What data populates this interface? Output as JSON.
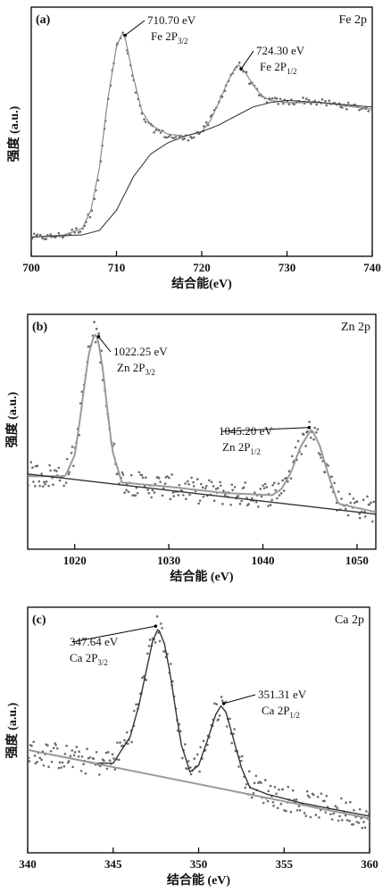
{
  "chart_data": [
    {
      "type": "scatter",
      "panel_label": "(a)",
      "element_label": "Fe 2p",
      "xlabel": "结合能(eV)",
      "ylabel": "强度 (a.u.)",
      "xlim": [
        700,
        740
      ],
      "xticks": [
        700,
        710,
        720,
        730,
        740
      ],
      "tick_labels": [
        "700",
        "710",
        "720",
        "730",
        "740"
      ],
      "ylim": [
        0,
        1
      ],
      "annotations": [
        {
          "value": "710.70 eV",
          "main": "Fe 2P",
          "sub": "3/2",
          "x": 710.7,
          "y": 0.93
        },
        {
          "value": "724.30 eV",
          "main": "Fe 2P",
          "sub": "1/2",
          "x": 724.3,
          "y": 0.78
        }
      ],
      "series": [
        {
          "role": "measured points",
          "style": "dots",
          "x": [
            700,
            702,
            704,
            706,
            707,
            708,
            709,
            710,
            710.7,
            711,
            712,
            713,
            714,
            716,
            718,
            720,
            721,
            722,
            723,
            724,
            724.3,
            725,
            726,
            727,
            728,
            730,
            732,
            734,
            736,
            738,
            740
          ],
          "y": [
            0.03,
            0.03,
            0.04,
            0.07,
            0.14,
            0.32,
            0.64,
            0.88,
            0.94,
            0.91,
            0.72,
            0.57,
            0.52,
            0.48,
            0.47,
            0.5,
            0.55,
            0.63,
            0.72,
            0.79,
            0.8,
            0.77,
            0.7,
            0.65,
            0.64,
            0.63,
            0.64,
            0.63,
            0.62,
            0.61,
            0.6
          ]
        },
        {
          "role": "fit envelope",
          "style": "thin gray line",
          "x": [
            700,
            704,
            706,
            707,
            708,
            709,
            710,
            710.7,
            711,
            712,
            713,
            714,
            716,
            718,
            720,
            721,
            722,
            723,
            724,
            724.3,
            725,
            726,
            727,
            728,
            730,
            732,
            734,
            736,
            738,
            740
          ],
          "y": [
            0.03,
            0.04,
            0.07,
            0.15,
            0.34,
            0.65,
            0.88,
            0.94,
            0.92,
            0.74,
            0.59,
            0.53,
            0.49,
            0.48,
            0.5,
            0.55,
            0.63,
            0.72,
            0.79,
            0.8,
            0.77,
            0.71,
            0.66,
            0.64,
            0.63,
            0.63,
            0.63,
            0.62,
            0.61,
            0.6
          ]
        },
        {
          "role": "background",
          "style": "thin dark line",
          "x": [
            700,
            706,
            708,
            710,
            712,
            714,
            716,
            718,
            720,
            722,
            724,
            726,
            728,
            730,
            734,
            740
          ],
          "y": [
            0.03,
            0.04,
            0.06,
            0.15,
            0.3,
            0.4,
            0.45,
            0.48,
            0.5,
            0.53,
            0.57,
            0.61,
            0.63,
            0.64,
            0.63,
            0.61
          ]
        }
      ]
    },
    {
      "type": "scatter",
      "panel_label": "(b)",
      "element_label": "Zn 2p",
      "xlabel": "结合能 (eV)",
      "ylabel": "强度 (a.u.)",
      "xlim": [
        1015,
        1052
      ],
      "xticks": [
        1020,
        1030,
        1040,
        1050
      ],
      "tick_labels": [
        "1020",
        "1030",
        "1040",
        "1050"
      ],
      "ylim": [
        0,
        1
      ],
      "annotations": [
        {
          "value": "1022.25 eV",
          "main": "Zn 2P",
          "sub": "3/2",
          "x": 1022.25,
          "y": 0.95
        },
        {
          "value": "1045.20 eV",
          "main": "Zn 2P",
          "sub": "1/2",
          "x": 1045.2,
          "y": 0.52
        }
      ],
      "series": [
        {
          "role": "measured points",
          "style": "dots",
          "x": [
            1015,
            1017,
            1019,
            1020,
            1020.5,
            1021,
            1021.5,
            1022,
            1022.25,
            1022.5,
            1023,
            1023.5,
            1024,
            1025,
            1027,
            1030,
            1033,
            1036,
            1039,
            1041,
            1042,
            1043,
            1044,
            1045,
            1045.2,
            1046,
            1047,
            1048,
            1050,
            1052
          ],
          "y": [
            0.3,
            0.29,
            0.3,
            0.4,
            0.55,
            0.72,
            0.88,
            0.96,
            0.97,
            0.94,
            0.8,
            0.6,
            0.42,
            0.27,
            0.25,
            0.24,
            0.22,
            0.21,
            0.2,
            0.21,
            0.24,
            0.32,
            0.44,
            0.51,
            0.52,
            0.45,
            0.3,
            0.17,
            0.15,
            0.13
          ]
        },
        {
          "role": "fit envelope",
          "style": "gray line",
          "x": [
            1015,
            1019,
            1020,
            1020.5,
            1021,
            1021.5,
            1022,
            1022.25,
            1022.5,
            1023,
            1023.5,
            1024,
            1025,
            1030,
            1036,
            1041,
            1042,
            1043,
            1044,
            1045,
            1045.2,
            1046,
            1047,
            1048,
            1050,
            1052
          ],
          "y": [
            0.29,
            0.29,
            0.39,
            0.54,
            0.71,
            0.87,
            0.95,
            0.96,
            0.93,
            0.79,
            0.59,
            0.41,
            0.26,
            0.24,
            0.21,
            0.2,
            0.23,
            0.31,
            0.43,
            0.5,
            0.51,
            0.44,
            0.29,
            0.16,
            0.14,
            0.12
          ]
        },
        {
          "role": "background",
          "style": "dark line",
          "x": [
            1015,
            1052
          ],
          "y": [
            0.3,
            0.11
          ]
        }
      ]
    },
    {
      "type": "scatter",
      "panel_label": "(c)",
      "element_label": "Ca 2p",
      "xlabel": "结合能 (eV)",
      "ylabel": "强度 (a.u.)",
      "xlim": [
        340,
        360
      ],
      "xticks": [
        340,
        345,
        350,
        355,
        360
      ],
      "tick_labels": [
        "340",
        "345",
        "350",
        "355",
        "360"
      ],
      "ylim": [
        0,
        1
      ],
      "annotations": [
        {
          "value": "347.64 eV",
          "main": "Ca 2P",
          "sub": "3/2",
          "x": 347.64,
          "y": 0.97
        },
        {
          "value": "351.31 eV",
          "main": "Ca 2P",
          "sub": "1/2",
          "x": 351.31,
          "y": 0.62
        }
      ],
      "series": [
        {
          "role": "measured points",
          "style": "dots",
          "x": [
            340,
            342,
            344,
            345,
            346,
            346.5,
            347,
            347.3,
            347.64,
            348,
            348.3,
            348.7,
            349,
            349.5,
            350,
            350.5,
            351,
            351.31,
            351.6,
            352,
            352.5,
            353,
            354,
            356,
            358,
            360
          ],
          "y": [
            0.4,
            0.38,
            0.35,
            0.36,
            0.48,
            0.62,
            0.8,
            0.91,
            0.97,
            0.9,
            0.78,
            0.58,
            0.44,
            0.32,
            0.35,
            0.46,
            0.58,
            0.62,
            0.59,
            0.48,
            0.34,
            0.25,
            0.22,
            0.17,
            0.14,
            0.11
          ]
        },
        {
          "role": "fit envelope",
          "style": "dark line",
          "x": [
            340,
            344,
            345,
            346,
            346.5,
            347,
            347.3,
            347.64,
            348,
            348.3,
            348.7,
            349,
            349.5,
            350,
            350.5,
            351,
            351.31,
            351.6,
            352,
            352.5,
            353,
            354,
            356,
            358,
            360
          ],
          "y": [
            0.41,
            0.35,
            0.35,
            0.47,
            0.61,
            0.79,
            0.9,
            0.96,
            0.89,
            0.77,
            0.57,
            0.43,
            0.31,
            0.34,
            0.45,
            0.57,
            0.61,
            0.58,
            0.47,
            0.33,
            0.24,
            0.21,
            0.17,
            0.14,
            0.11
          ]
        },
        {
          "role": "background",
          "style": "gray line",
          "x": [
            340,
            360
          ],
          "y": [
            0.41,
            0.1
          ]
        }
      ]
    }
  ]
}
